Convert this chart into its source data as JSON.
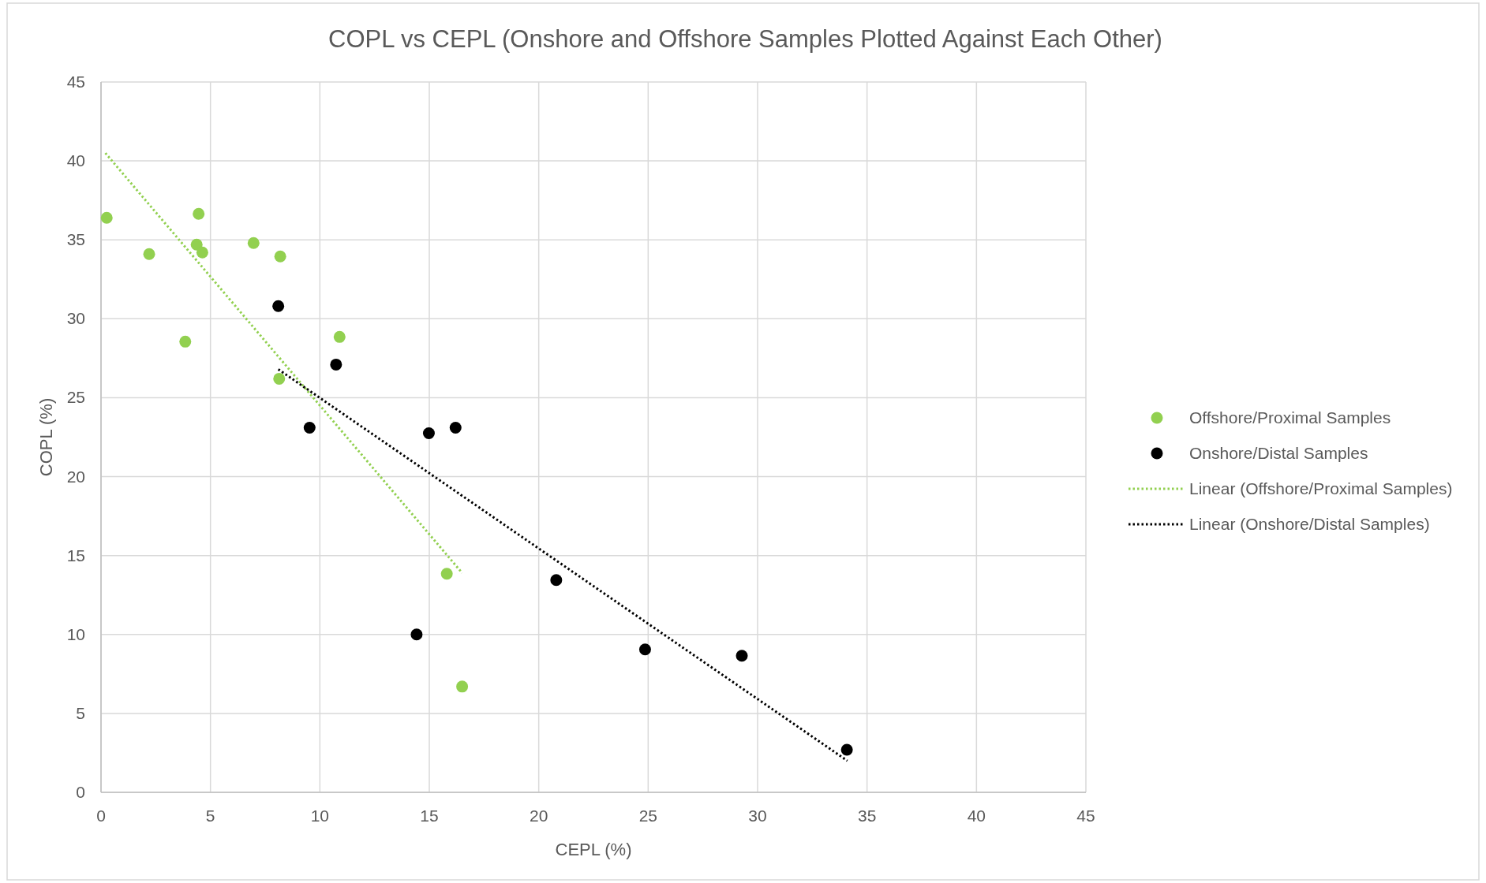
{
  "chart_data": {
    "type": "scatter",
    "title": "COPL vs CEPL (Onshore and Offshore Samples Plotted Against Each Other)",
    "xlabel": "CEPL (%)",
    "ylabel": "COPL (%)",
    "xlim": [
      0,
      45
    ],
    "ylim": [
      0,
      45
    ],
    "xticks": [
      0,
      5,
      10,
      15,
      20,
      25,
      30,
      35,
      40,
      45
    ],
    "yticks": [
      0,
      5,
      10,
      15,
      20,
      25,
      30,
      35,
      40,
      45
    ],
    "grid": true,
    "legend": "right",
    "marker": "circle",
    "series": [
      {
        "name": "Offshore/Proximal Samples",
        "color": "#92d050",
        "x": [
          0.26,
          2.2,
          4.46,
          4.37,
          4.63,
          3.85,
          6.97,
          8.19,
          8.14,
          10.9,
          15.8,
          16.5
        ],
        "values": [
          36.4,
          34.1,
          36.65,
          34.7,
          34.2,
          28.55,
          34.8,
          33.95,
          26.2,
          28.85,
          13.85,
          6.7
        ]
      },
      {
        "name": "Onshore/Distal Samples",
        "color": "#000000",
        "x": [
          8.1,
          10.74,
          9.53,
          14.98,
          16.2,
          14.42,
          20.8,
          24.86,
          29.28,
          34.08
        ],
        "values": [
          30.8,
          27.1,
          23.1,
          22.75,
          23.1,
          10.0,
          13.45,
          9.05,
          8.65,
          2.7
        ]
      },
      {
        "name": "Linear (Offshore/Proximal Samples)",
        "type": "line",
        "marker": "none",
        "line_style": "dotted",
        "color": "#92d050",
        "x": [
          0.2,
          16.5
        ],
        "values": [
          40.5,
          13.9
        ]
      },
      {
        "name": "Linear (Onshore/Distal Samples)",
        "type": "line",
        "marker": "none",
        "line_style": "dotted",
        "color": "#000000",
        "x": [
          8.1,
          34.1
        ],
        "values": [
          26.8,
          2.0
        ]
      }
    ]
  }
}
